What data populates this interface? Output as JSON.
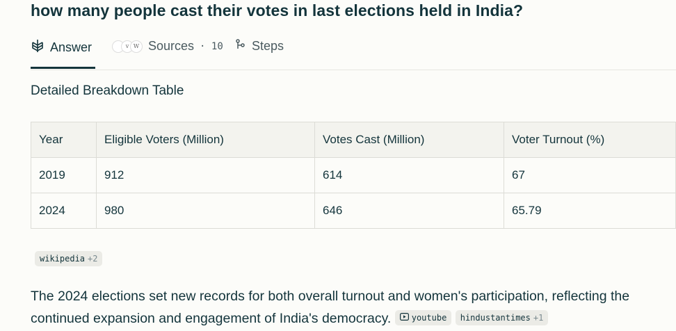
{
  "question": "how many people cast their votes in last elections held in India?",
  "tabs": {
    "answer": "Answer",
    "sources": "Sources",
    "sources_count": "· 10",
    "steps": "Steps"
  },
  "section_title": "Detailed Breakdown Table",
  "table": {
    "headers": [
      "Year",
      "Eligible Voters (Million)",
      "Votes Cast (Million)",
      "Voter Turnout (%)"
    ],
    "rows": [
      [
        "2019",
        "912",
        "614",
        "67"
      ],
      [
        "2024",
        "980",
        "646",
        "65.79"
      ]
    ]
  },
  "citation_wiki": {
    "label": "wikipedia",
    "extra": "+2"
  },
  "paragraph": {
    "text": "The 2024 elections set new records for both overall turnout and women's participation, reflecting the continued expansion and engagement of India's democracy.",
    "citations": [
      {
        "label": "youtube",
        "extra": ""
      },
      {
        "label": "hindustantimes",
        "extra": "+1"
      }
    ]
  },
  "colors": {
    "text": "#13343b",
    "background": "#fcfcf9",
    "header_bg": "#f3f3ee"
  }
}
